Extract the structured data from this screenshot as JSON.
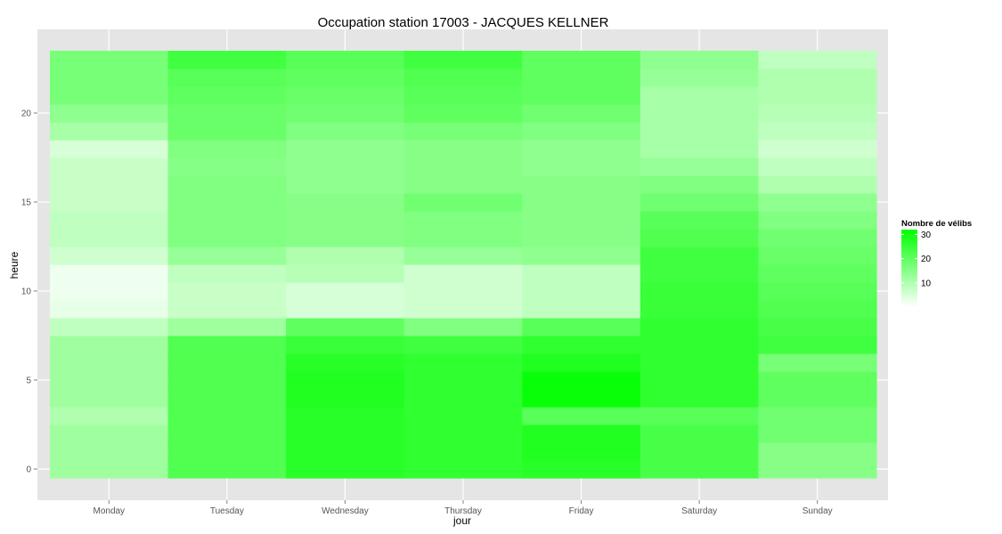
{
  "chart_data": {
    "type": "heatmap",
    "title": "Occupation station 17003 - JACQUES KELLNER",
    "xlabel": "jour",
    "ylabel": "heure",
    "categories": [
      "Monday",
      "Tuesday",
      "Wednesday",
      "Thursday",
      "Friday",
      "Saturday",
      "Sunday"
    ],
    "hours": [
      0,
      1,
      2,
      3,
      4,
      5,
      6,
      7,
      8,
      9,
      10,
      11,
      12,
      13,
      14,
      15,
      16,
      17,
      18,
      19,
      20,
      21,
      22,
      23
    ],
    "y_ticks": [
      0,
      5,
      10,
      15,
      20
    ],
    "ylim": [
      -0.5,
      23.5
    ],
    "values": [
      [
        12,
        12,
        12,
        10,
        12,
        12,
        12,
        12,
        8,
        3,
        2,
        2,
        6,
        8,
        8,
        7,
        7,
        7,
        5,
        11,
        14,
        17,
        17,
        17
      ],
      [
        22,
        22,
        22,
        22,
        22,
        22,
        22,
        22,
        12,
        7,
        7,
        8,
        13,
        16,
        16,
        16,
        16,
        15,
        16,
        19,
        19,
        20,
        21,
        24
      ],
      [
        27,
        27,
        27,
        27,
        28,
        28,
        27,
        25,
        20,
        5,
        5,
        9,
        10,
        15,
        15,
        15,
        14,
        14,
        14,
        16,
        18,
        19,
        20,
        21
      ],
      [
        26,
        26,
        26,
        26,
        26,
        26,
        26,
        24,
        16,
        6,
        6,
        6,
        13,
        16,
        16,
        18,
        15,
        15,
        15,
        17,
        20,
        21,
        22,
        24
      ],
      [
        27,
        28,
        28,
        21,
        31,
        31,
        28,
        26,
        21,
        8,
        8,
        8,
        14,
        15,
        15,
        15,
        15,
        14,
        14,
        16,
        18,
        20,
        20,
        20
      ],
      [
        23,
        23,
        23,
        21,
        26,
        26,
        26,
        26,
        26,
        25,
        25,
        24,
        24,
        22,
        21,
        18,
        16,
        13,
        11,
        11,
        11,
        11,
        13,
        14
      ],
      [
        15,
        15,
        18,
        18,
        20,
        20,
        17,
        24,
        23,
        22,
        21,
        20,
        19,
        18,
        16,
        14,
        10,
        8,
        6,
        8,
        9,
        10,
        10,
        8
      ]
    ],
    "color_scale": {
      "low": "#ffffff",
      "high": "#00ff00",
      "min": 0,
      "max": 32
    },
    "legend": {
      "title": "Nombre de vélibs",
      "ticks": [
        10,
        20,
        30
      ],
      "placement": "right"
    },
    "grid": true,
    "panel_color": "#e5e5e5"
  }
}
